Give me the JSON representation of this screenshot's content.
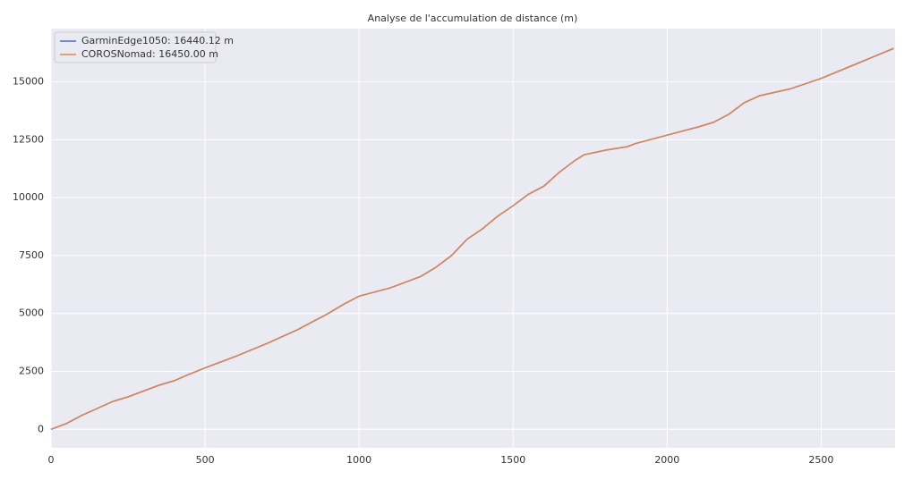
{
  "chart_data": {
    "type": "line",
    "title": "Analyse de l'accumulation de distance (m)",
    "x": [
      0,
      50,
      100,
      150,
      200,
      250,
      300,
      350,
      400,
      440,
      500,
      600,
      700,
      800,
      900,
      950,
      1000,
      1100,
      1200,
      1250,
      1300,
      1350,
      1400,
      1450,
      1500,
      1550,
      1600,
      1650,
      1700,
      1730,
      1800,
      1870,
      1900,
      2000,
      2100,
      2150,
      2200,
      2250,
      2300,
      2400,
      2500,
      2600,
      2700,
      2735
    ],
    "series": [
      {
        "name": "GarminEdge1050: 16440.12 m",
        "color": "#4c72b0",
        "values": [
          0,
          250,
          600,
          900,
          1200,
          1400,
          1650,
          1900,
          2100,
          2330,
          2650,
          3150,
          3700,
          4300,
          5000,
          5400,
          5750,
          6100,
          6600,
          7000,
          7500,
          8200,
          8650,
          9200,
          9650,
          10150,
          10500,
          11100,
          11600,
          11850,
          12050,
          12200,
          12350,
          12700,
          13050,
          13250,
          13600,
          14100,
          14400,
          14700,
          15150,
          15700,
          16250,
          16440.12
        ]
      },
      {
        "name": "COROSNomad: 16450.00 m",
        "color": "#dd8452",
        "values": [
          0,
          250,
          600,
          900,
          1200,
          1400,
          1650,
          1900,
          2100,
          2330,
          2650,
          3150,
          3700,
          4300,
          5000,
          5400,
          5750,
          6100,
          6600,
          7000,
          7500,
          8200,
          8650,
          9200,
          9650,
          10150,
          10500,
          11100,
          11600,
          11850,
          12050,
          12200,
          12350,
          12700,
          13050,
          13250,
          13600,
          14100,
          14400,
          14700,
          15150,
          15700,
          16250,
          16450
        ]
      }
    ],
    "xlim": [
      0,
      2740
    ],
    "xticks": [
      0,
      500,
      1000,
      1500,
      2000,
      2500
    ],
    "ylim": [
      -800,
      17300
    ],
    "yticks": [
      0,
      2500,
      5000,
      7500,
      10000,
      12500,
      15000
    ],
    "grid": true,
    "legend": "upper left"
  }
}
